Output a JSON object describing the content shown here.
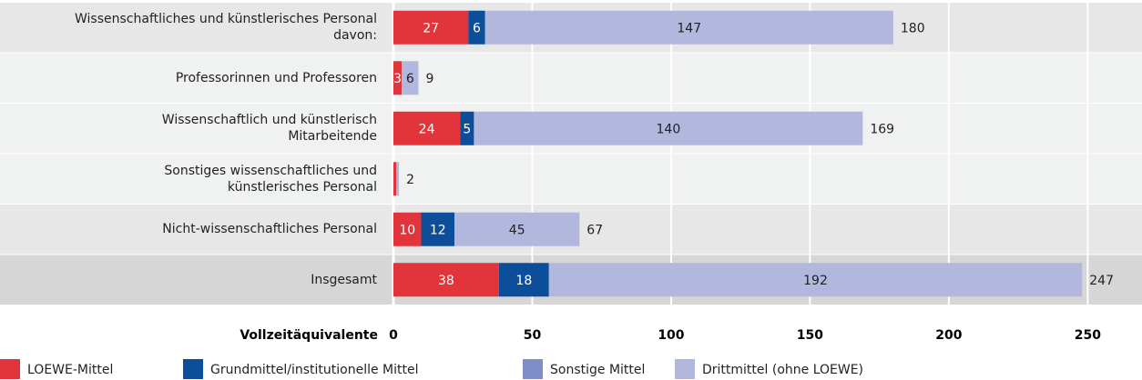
{
  "chart_data": {
    "type": "stacked-barh",
    "categories": [
      "Wissenschaftliches und künstlerisches Personal\ndavon:",
      "Professorinnen und Professoren",
      "Wissenschaftlich und künstlerisch\nMitarbeitende",
      "Sonstiges wissenschaftliches und\nkünstlerisches Personal",
      "Nicht-wissenschaftliches Personal",
      "Insgesamt"
    ],
    "row_colors": [
      "#e7e7e7",
      "#f0f1f1",
      "#f0f1f1",
      "#f0f1f1",
      "#e7e7e7",
      "#d6d6d6"
    ],
    "series": [
      {
        "name": "LOEWE-Mittel",
        "color": "#e1353b",
        "values": [
          27,
          3,
          24,
          1,
          10,
          38
        ]
      },
      {
        "name": "Grundmittel/institutionelle Mittel",
        "color": "#0d4e9b",
        "values": [
          6,
          0,
          5,
          0,
          12,
          18
        ]
      },
      {
        "name": "Sonstige Mittel",
        "color": "#7c8ec7",
        "values": [
          0,
          0,
          0,
          0,
          0,
          0
        ]
      },
      {
        "name": "Drittmittel (ohne LOEWE)",
        "color": "#b1b7dd",
        "values": [
          147,
          6,
          140,
          1,
          45,
          192
        ]
      }
    ],
    "totals": [
      180,
      9,
      169,
      2,
      67,
      247
    ],
    "xlabel": "Vollzeitäquivalente",
    "xlim": [
      0,
      263
    ],
    "xticks": [
      0,
      50,
      100,
      150,
      200,
      250
    ],
    "grid": true
  }
}
